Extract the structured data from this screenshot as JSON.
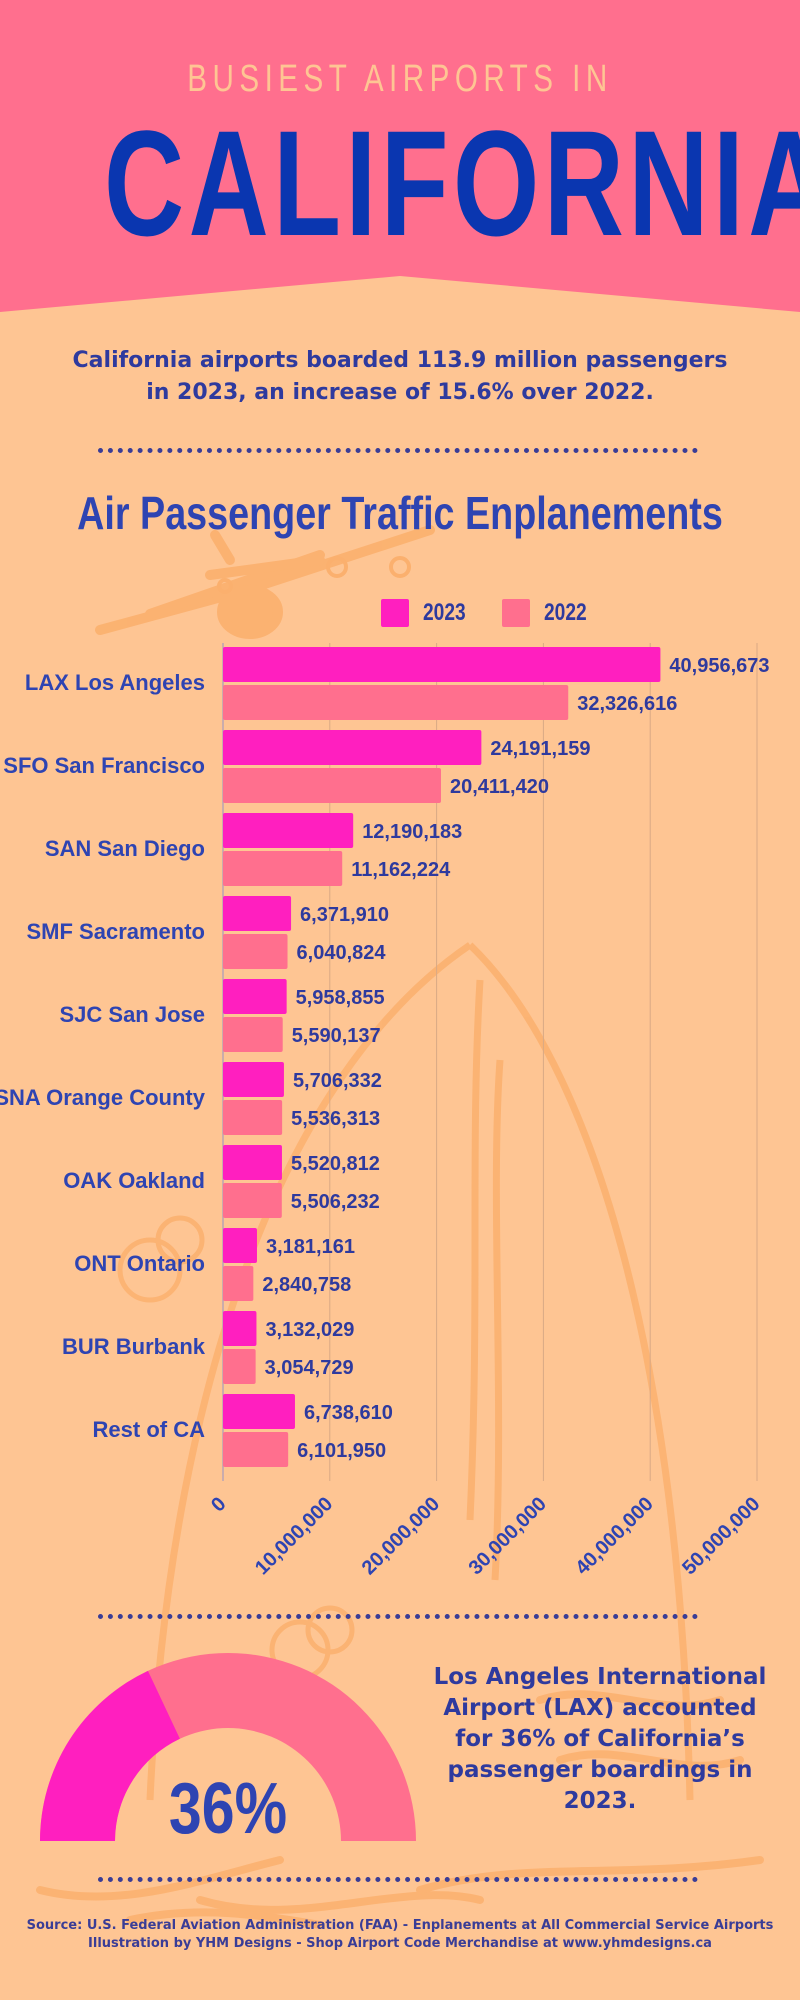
{
  "header": {
    "kicker": "BUSIEST AIRPORTS IN",
    "title": "CALIFORNIA"
  },
  "intro": {
    "line1": "California airports boarded 113.9 million passengers",
    "line2": "in 2023, an increase of 15.6% over 2022."
  },
  "colors": {
    "header_bg": "#ff6f8e",
    "page_bg": "#fec593",
    "series_2023": "#ff1fbf",
    "series_2022": "#ff6f8e",
    "text_blue": "#2e44b2",
    "title_blue": "#0a36b0",
    "decoration": "#fbb06e"
  },
  "chart_data": {
    "type": "bar",
    "orientation": "horizontal",
    "title": "Air Passenger Traffic Enplanements",
    "xlabel": "",
    "ylabel": "",
    "categories": [
      "LAX Los Angeles",
      "SFO San Francisco",
      "SAN San Diego",
      "SMF Sacramento",
      "SJC San Jose",
      "SNA Orange County",
      "OAK Oakland",
      "ONT Ontario",
      "BUR Burbank",
      "Rest of CA"
    ],
    "series": [
      {
        "name": "2023",
        "values": [
          40956673,
          24191159,
          12190183,
          6371910,
          5958855,
          5706332,
          5520812,
          3181161,
          3132029,
          6738610
        ]
      },
      {
        "name": "2022",
        "values": [
          32326616,
          20411420,
          11162224,
          6040824,
          5590137,
          5536313,
          5506232,
          2840758,
          3054729,
          6101950
        ]
      }
    ],
    "xlim": [
      0,
      50000000
    ],
    "xticks": [
      0,
      10000000,
      20000000,
      30000000,
      40000000,
      50000000
    ],
    "xtick_labels": [
      "0",
      "10,000,000",
      "20,000,000",
      "30,000,000",
      "40,000,000",
      "50,000,000"
    ],
    "grid": true,
    "legend": "top-right",
    "value_labels": true
  },
  "lax_share": {
    "percent": 36,
    "gauge_label": "36%",
    "text_lines": [
      "Los Angeles International",
      "Airport (LAX) accounted",
      "for 36% of California’s",
      "passenger boardings in",
      "2023."
    ]
  },
  "footer": {
    "source": "Source: U.S. Federal Aviation Administration (FAA) - Enplanements at All Commercial Service Airports",
    "credit": "Illustration by YHM Designs - Shop Airport Code Merchandise at www.yhmdesigns.ca"
  }
}
